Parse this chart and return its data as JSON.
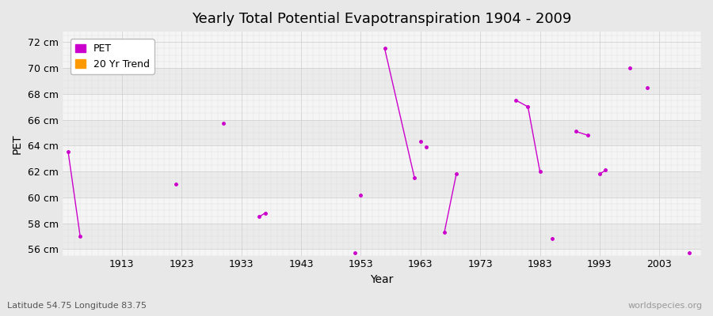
{
  "title": "Yearly Total Potential Evapotranspiration 1904 - 2009",
  "xlabel": "Year",
  "ylabel": "PET",
  "subtitle": "Latitude 54.75 Longitude 83.75",
  "watermark": "worldspecies.org",
  "ylim": [
    55.5,
    72.8
  ],
  "xlim": [
    1903,
    2010
  ],
  "yticks": [
    56,
    58,
    60,
    62,
    64,
    66,
    68,
    70,
    72
  ],
  "ytick_labels": [
    "56 cm",
    "58 cm",
    "60 cm",
    "62 cm",
    "64 cm",
    "66 cm",
    "68 cm",
    "70 cm",
    "72 cm"
  ],
  "xticks": [
    1913,
    1923,
    1933,
    1943,
    1953,
    1963,
    1973,
    1983,
    1993,
    2003
  ],
  "pet_color": "#cc00cc",
  "trend_color": "#ff9900",
  "fig_bg_color": "#e8e8e8",
  "plot_bg_light": "#f5f5f5",
  "plot_bg_dark": "#ebebeb",
  "pet_segments": [
    [
      [
        1904,
        63.5
      ],
      [
        1906,
        57.0
      ]
    ],
    [
      [
        1922,
        61.0
      ]
    ],
    [
      [
        1930,
        65.7
      ]
    ],
    [
      [
        1936,
        58.5
      ],
      [
        1937,
        58.8
      ]
    ],
    [
      [
        1952,
        55.7
      ]
    ],
    [
      [
        1953,
        60.2
      ]
    ],
    [
      [
        1957,
        71.5
      ],
      [
        1962,
        61.5
      ]
    ],
    [
      [
        1963,
        64.3
      ]
    ],
    [
      [
        1964,
        63.9
      ]
    ],
    [
      [
        1967,
        57.3
      ],
      [
        1969,
        61.8
      ]
    ],
    [
      [
        1979,
        67.5
      ],
      [
        1981,
        67.0
      ],
      [
        1983,
        62.0
      ]
    ],
    [
      [
        1985,
        56.8
      ]
    ],
    [
      [
        1989,
        65.1
      ],
      [
        1991,
        64.8
      ]
    ],
    [
      [
        1993,
        61.8
      ],
      [
        1994,
        62.1
      ]
    ],
    [
      [
        1998,
        70.0
      ]
    ],
    [
      [
        2001,
        68.5
      ]
    ],
    [
      [
        2008,
        55.7
      ]
    ]
  ]
}
